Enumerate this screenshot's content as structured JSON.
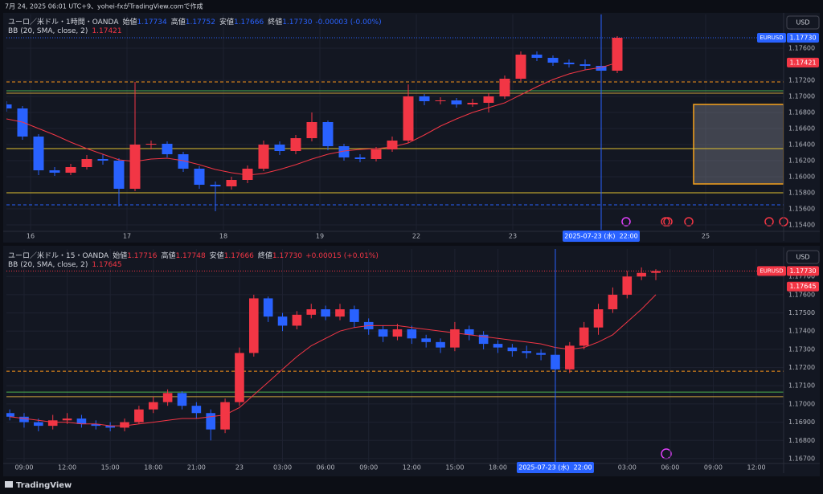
{
  "caption": "7月 24, 2025 06:01 UTC+9、yohei-fxがTradingView.comで作成",
  "brand": "TradingView",
  "chart_data": [
    {
      "type": "candlestick",
      "title": "ユーロ／米ドル・1時間・OANDA",
      "currency": "USD",
      "legend_items": [
        {
          "label": "始値",
          "value": "1.17734"
        },
        {
          "label": "高値",
          "value": "1.17752"
        },
        {
          "label": "安値",
          "value": "1.17666"
        },
        {
          "label": "終値",
          "value": "1.17730"
        }
      ],
      "change": "-0.00003 (-0.00%)",
      "legend_color": "#2962ff",
      "up_color": "#f23645",
      "down_color": "#2962ff",
      "candles": {
        "x": [
          -6,
          -2,
          2,
          6,
          10,
          14,
          18,
          22,
          26,
          30,
          34,
          38,
          42,
          46,
          50,
          54,
          58,
          62,
          66,
          70,
          74,
          78,
          82,
          86,
          90,
          94,
          98,
          102,
          106,
          110,
          114,
          118,
          122,
          126,
          130,
          134,
          138,
          142,
          146
        ],
        "open": [
          1.169,
          1.1685,
          1.165,
          1.1608,
          1.1605,
          1.1612,
          1.1622,
          1.162,
          1.1585,
          1.164,
          1.1641,
          1.1628,
          1.161,
          1.159,
          1.1588,
          1.1596,
          1.161,
          1.164,
          1.1632,
          1.1648,
          1.1668,
          1.1638,
          1.1624,
          1.1622,
          1.1634,
          1.1645,
          1.17,
          1.1694,
          1.1695,
          1.169,
          1.1692,
          1.17,
          1.1722,
          1.1752,
          1.1748,
          1.1742,
          1.174,
          1.1738,
          1.1732
        ],
        "high": [
          1.1694,
          1.1688,
          1.1653,
          1.1612,
          1.1616,
          1.1627,
          1.1628,
          1.1623,
          1.1718,
          1.1645,
          1.1644,
          1.1631,
          1.1613,
          1.1594,
          1.16,
          1.1614,
          1.1645,
          1.1644,
          1.1652,
          1.168,
          1.167,
          1.1641,
          1.1628,
          1.1637,
          1.165,
          1.1715,
          1.1703,
          1.1699,
          1.1698,
          1.1697,
          1.1704,
          1.1726,
          1.1756,
          1.1756,
          1.1751,
          1.1746,
          1.1746,
          1.1741,
          1.1775
        ],
        "low": [
          1.1681,
          1.1646,
          1.1602,
          1.1601,
          1.1602,
          1.1609,
          1.1615,
          1.1563,
          1.1582,
          1.1634,
          1.1624,
          1.1606,
          1.1585,
          1.1557,
          1.1584,
          1.1592,
          1.1607,
          1.1627,
          1.1628,
          1.1644,
          1.1633,
          1.162,
          1.1618,
          1.1619,
          1.1631,
          1.1642,
          1.1689,
          1.169,
          1.1686,
          1.1687,
          1.168,
          1.1697,
          1.1719,
          1.1744,
          1.1738,
          1.1736,
          1.1733,
          1.1728,
          1.1729
        ],
        "close": [
          1.1685,
          1.165,
          1.1608,
          1.1605,
          1.1612,
          1.1622,
          1.162,
          1.1585,
          1.164,
          1.1641,
          1.1628,
          1.161,
          1.159,
          1.1588,
          1.1596,
          1.161,
          1.164,
          1.1632,
          1.1648,
          1.1668,
          1.1638,
          1.1624,
          1.1622,
          1.1634,
          1.1645,
          1.17,
          1.1694,
          1.1695,
          1.169,
          1.1692,
          1.17,
          1.1722,
          1.1752,
          1.1748,
          1.1742,
          1.174,
          1.1738,
          1.1732,
          1.1773
        ]
      },
      "bb": {
        "name": "BB (20, SMA, close, 2)",
        "color": "#f23645",
        "values": [
          1.1672,
          1.1668,
          1.166,
          1.1652,
          1.1643,
          1.1635,
          1.1628,
          1.1621,
          1.1619,
          1.1622,
          1.1623,
          1.162,
          1.1615,
          1.1609,
          1.1605,
          1.1602,
          1.1604,
          1.1609,
          1.1615,
          1.1622,
          1.1628,
          1.1632,
          1.1634,
          1.1635,
          1.1637,
          1.1642,
          1.1652,
          1.1663,
          1.1672,
          1.168,
          1.1686,
          1.1692,
          1.1702,
          1.1712,
          1.1721,
          1.1728,
          1.1733,
          1.1736,
          1.1742
        ]
      },
      "badges": [
        {
          "name": "EURUSD",
          "value": 1.1773,
          "label": "1.17730",
          "color": "#2962ff"
        },
        {
          "value": 1.17421,
          "label": "1.17421",
          "color": "#f23645"
        }
      ],
      "levels": [
        {
          "value": 1.1773,
          "color": "#2962ff",
          "style": "dotted"
        },
        {
          "value": 1.1718,
          "color": "#f7931a",
          "style": "dashed"
        },
        {
          "value": 1.1707,
          "color": "#4caf50",
          "style": "solid"
        },
        {
          "value": 1.1704,
          "color": "#c8a03c",
          "style": "solid"
        },
        {
          "value": 1.1635,
          "color": "#e0c030",
          "style": "solid"
        },
        {
          "value": 1.158,
          "color": "#e0c030",
          "style": "solid"
        },
        {
          "value": 1.1565,
          "color": "#2962ff",
          "style": "dashed"
        }
      ],
      "zones": [
        {
          "x": [
            165,
            187.4
          ],
          "y": [
            1.1591,
            1.169
          ],
          "color": "#787b86",
          "border": "#f7a21b"
        }
      ],
      "crosshair": {
        "x": 142,
        "label": "2025-07-23 (水)  22:00"
      },
      "xlim": [
        -6,
        187.4
      ],
      "ylim": [
        1.1534,
        1.1802
      ],
      "xticks": [
        {
          "value": 0,
          "label": "16"
        },
        {
          "value": 24,
          "label": "17"
        },
        {
          "value": 48,
          "label": "18"
        },
        {
          "value": 72,
          "label": "19"
        },
        {
          "value": 96,
          "label": "22"
        },
        {
          "value": 120,
          "label": "23"
        },
        {
          "value": 168,
          "label": "25"
        }
      ],
      "yticks": [
        {
          "value": 1.176,
          "label": "1.17600"
        },
        {
          "value": 1.172,
          "label": "1.17200"
        },
        {
          "value": 1.17,
          "label": "1.17000"
        },
        {
          "value": 1.168,
          "label": "1.16800"
        },
        {
          "value": 1.166,
          "label": "1.16600"
        },
        {
          "value": 1.164,
          "label": "1.16400"
        },
        {
          "value": 1.162,
          "label": "1.16200"
        },
        {
          "value": 1.16,
          "label": "1.16000"
        },
        {
          "value": 1.158,
          "label": "1.15800"
        },
        {
          "value": 1.156,
          "label": "1.15600"
        },
        {
          "value": 1.154,
          "label": "1.15400"
        }
      ],
      "grid": true
    },
    {
      "type": "candlestick",
      "title": "ユーロ／米ドル・15・OANDA",
      "currency": "USD",
      "legend_items": [
        {
          "label": "始値",
          "value": "1.17716"
        },
        {
          "label": "高値",
          "value": "1.17748"
        },
        {
          "label": "安値",
          "value": "1.17666"
        },
        {
          "label": "終値",
          "value": "1.17730"
        }
      ],
      "change": "+0.00015 (+0.01%)",
      "legend_color": "#f23645",
      "up_color": "#f23645",
      "down_color": "#2962ff",
      "candles": {
        "x": [
          8,
          9,
          10,
          11,
          12,
          13,
          14,
          15,
          16,
          17,
          18,
          19,
          20,
          21,
          22,
          23,
          24,
          25,
          26,
          27,
          28,
          29,
          30,
          31,
          32,
          33,
          34,
          35,
          36,
          37,
          38,
          39,
          40,
          41,
          42,
          43,
          44,
          45,
          46,
          47,
          48,
          49,
          50,
          51,
          52,
          53
        ],
        "open": [
          1.1695,
          1.1693,
          1.169,
          1.1688,
          1.1691,
          1.1692,
          1.1689,
          1.1688,
          1.1687,
          1.169,
          1.1697,
          1.1701,
          1.1706,
          1.1699,
          1.1695,
          1.1686,
          1.1701,
          1.1728,
          1.1758,
          1.1748,
          1.1743,
          1.1749,
          1.1752,
          1.1748,
          1.1752,
          1.1745,
          1.1741,
          1.1737,
          1.1741,
          1.1736,
          1.1734,
          1.1731,
          1.1741,
          1.1738,
          1.1733,
          1.1731,
          1.1729,
          1.1728,
          1.1727,
          1.1719,
          1.1732,
          1.1742,
          1.1752,
          1.176,
          1.177,
          1.1772
        ],
        "high": [
          1.1697,
          1.1695,
          1.1692,
          1.1694,
          1.1695,
          1.1694,
          1.1691,
          1.169,
          1.1692,
          1.1699,
          1.1704,
          1.1708,
          1.1707,
          1.1701,
          1.1697,
          1.1703,
          1.1731,
          1.176,
          1.1759,
          1.175,
          1.1751,
          1.1755,
          1.1754,
          1.1755,
          1.1754,
          1.1747,
          1.1743,
          1.1744,
          1.1743,
          1.1738,
          1.1736,
          1.1745,
          1.1743,
          1.174,
          1.1735,
          1.1733,
          1.1732,
          1.173,
          1.1729,
          1.1734,
          1.1745,
          1.1755,
          1.1764,
          1.1773,
          1.1775,
          1.1774
        ],
        "low": [
          1.1691,
          1.1687,
          1.1685,
          1.1686,
          1.1689,
          1.1687,
          1.1686,
          1.1685,
          1.1685,
          1.1689,
          1.1695,
          1.1699,
          1.1697,
          1.1692,
          1.168,
          1.1684,
          1.1699,
          1.1726,
          1.1745,
          1.174,
          1.1741,
          1.1747,
          1.1746,
          1.1746,
          1.1742,
          1.1738,
          1.1734,
          1.1735,
          1.1733,
          1.1731,
          1.1728,
          1.1729,
          1.1735,
          1.173,
          1.1728,
          1.1726,
          1.1725,
          1.1724,
          1.1713,
          1.1717,
          1.173,
          1.1738,
          1.175,
          1.1758,
          1.1768,
          1.1768
        ],
        "close": [
          1.1693,
          1.169,
          1.1688,
          1.1691,
          1.1692,
          1.1689,
          1.1688,
          1.1687,
          1.169,
          1.1697,
          1.1701,
          1.1706,
          1.1699,
          1.1695,
          1.1686,
          1.1701,
          1.1728,
          1.1758,
          1.1748,
          1.1743,
          1.1749,
          1.1752,
          1.1748,
          1.1752,
          1.1745,
          1.1741,
          1.1737,
          1.1741,
          1.1736,
          1.1734,
          1.1731,
          1.1741,
          1.1738,
          1.1733,
          1.1731,
          1.1729,
          1.1728,
          1.1727,
          1.1719,
          1.1732,
          1.1742,
          1.1752,
          1.176,
          1.177,
          1.1772,
          1.1773
        ]
      },
      "bb": {
        "name": "BB (20, SMA, close, 2)",
        "color": "#f23645",
        "values": [
          1.1693,
          1.1692,
          1.1691,
          1.169,
          1.169,
          1.1689,
          1.1689,
          1.1688,
          1.1688,
          1.1689,
          1.169,
          1.1691,
          1.1692,
          1.1692,
          1.1693,
          1.1694,
          1.1698,
          1.1705,
          1.1712,
          1.1719,
          1.1726,
          1.1732,
          1.1736,
          1.174,
          1.1742,
          1.1743,
          1.1743,
          1.1743,
          1.1742,
          1.1741,
          1.174,
          1.1739,
          1.1738,
          1.1737,
          1.1736,
          1.1735,
          1.1734,
          1.1733,
          1.1731,
          1.173,
          1.1731,
          1.1734,
          1.1738,
          1.1745,
          1.1752,
          1.176
        ]
      },
      "badges": [
        {
          "name": "EURUSD",
          "value": 1.1773,
          "label": "1.17730",
          "color": "#f23645"
        },
        {
          "value": 1.17645,
          "label": "1.17645",
          "color": "#f23645"
        }
      ],
      "levels": [
        {
          "value": 1.1773,
          "color": "#f23645",
          "style": "dotted"
        },
        {
          "value": 1.1718,
          "color": "#f7931a",
          "style": "dashed"
        },
        {
          "value": 1.17065,
          "color": "#4caf50",
          "style": "solid"
        },
        {
          "value": 1.1704,
          "color": "#c8a03c",
          "style": "solid"
        }
      ],
      "zones": [],
      "crosshair": {
        "x": 46,
        "label": "2025-07-23 (水)  22:00"
      },
      "xlim": [
        7.77,
        61.9
      ],
      "ylim": [
        1.16682,
        1.17851
      ],
      "xticks": [
        {
          "value": 9,
          "label": "09:00"
        },
        {
          "value": 12,
          "label": "12:00"
        },
        {
          "value": 15,
          "label": "15:00"
        },
        {
          "value": 18,
          "label": "18:00"
        },
        {
          "value": 21,
          "label": "21:00"
        },
        {
          "value": 24,
          "label": "23"
        },
        {
          "value": 27,
          "label": "03:00"
        },
        {
          "value": 30,
          "label": "06:00"
        },
        {
          "value": 33,
          "label": "09:00"
        },
        {
          "value": 36,
          "label": "12:00"
        },
        {
          "value": 39,
          "label": "15:00"
        },
        {
          "value": 42,
          "label": "18:00"
        },
        {
          "value": 51,
          "label": "03:00"
        },
        {
          "value": 54,
          "label": "06:00"
        },
        {
          "value": 57,
          "label": "09:00"
        },
        {
          "value": 60,
          "label": "12:00"
        }
      ],
      "yticks": [
        {
          "value": 1.177,
          "label": "1.17700"
        },
        {
          "value": 1.176,
          "label": "1.17600"
        },
        {
          "value": 1.175,
          "label": "1.17500"
        },
        {
          "value": 1.174,
          "label": "1.17400"
        },
        {
          "value": 1.173,
          "label": "1.17300"
        },
        {
          "value": 1.172,
          "label": "1.17200"
        },
        {
          "value": 1.171,
          "label": "1.17100"
        },
        {
          "value": 1.17,
          "label": "1.17000"
        },
        {
          "value": 1.169,
          "label": "1.16900"
        },
        {
          "value": 1.168,
          "label": "1.16800"
        },
        {
          "value": 1.167,
          "label": "1.16700"
        }
      ],
      "grid": true
    }
  ]
}
